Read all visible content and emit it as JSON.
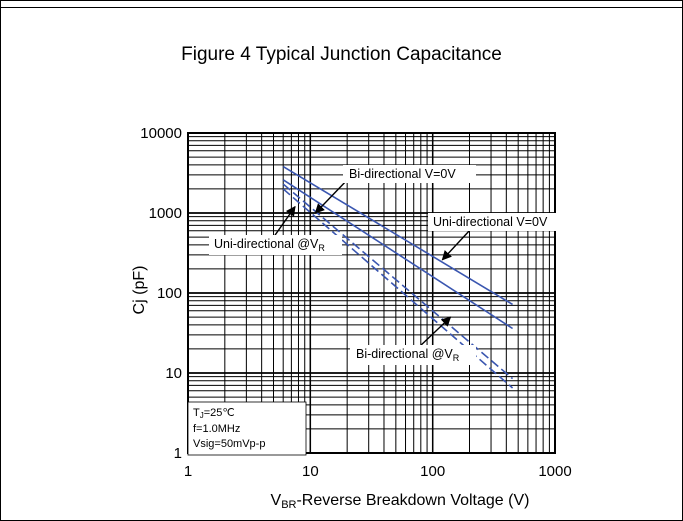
{
  "title": "Figure 4 Typical Junction Capacitance",
  "chart_data": {
    "type": "line",
    "title": "Figure 4 Typical Junction Capacitance",
    "xlabel_main": "V",
    "xlabel_sub": "BR",
    "xlabel_rest": "-Reverse Breakdown Voltage (V)",
    "ylabel": "Cj (pF)",
    "xscale": "log",
    "yscale": "log",
    "xlim": [
      1,
      1000
    ],
    "ylim": [
      1,
      10000
    ],
    "grid": true,
    "x_ticks": [
      "1",
      "10",
      "100",
      "1000"
    ],
    "y_ticks": [
      "10000",
      "1000",
      "100",
      "10",
      "1"
    ],
    "series": [
      {
        "name": "Bi-directional V=0V",
        "style": "solid",
        "x": [
          6,
          450
        ],
        "y": [
          3800,
          72
        ]
      },
      {
        "name": "Uni-directional V=0V",
        "style": "solid",
        "x": [
          6,
          450
        ],
        "y": [
          2600,
          36
        ]
      },
      {
        "name": "Uni-directional @VR",
        "style": "dashed",
        "x": [
          6,
          450
        ],
        "y": [
          2300,
          8.5
        ]
      },
      {
        "name": "Bi-directional @VR",
        "style": "dashed",
        "x": [
          6,
          450
        ],
        "y": [
          2000,
          6.5
        ]
      }
    ],
    "annotations": [
      {
        "text": "Bi-directional V=0V",
        "arrow_to": [
          11,
          1000
        ]
      },
      {
        "text": "Uni-directional V=0V",
        "arrow_to": [
          120,
          260
        ]
      },
      {
        "text_main": "Uni-directional @V",
        "text_sub": "R",
        "arrow_to": [
          7.5,
          1200
        ]
      },
      {
        "text_main": "Bi-directional @V",
        "text_sub": "R",
        "arrow_to": [
          140,
          50
        ]
      }
    ],
    "conditions": {
      "tj_main": "T",
      "tj_sub": "J",
      "tj_rest": "=25℃",
      "freq": "f=1.0MHz",
      "vsig": "Vsig=50mVp-p"
    },
    "line_color": "#3a56b0"
  }
}
